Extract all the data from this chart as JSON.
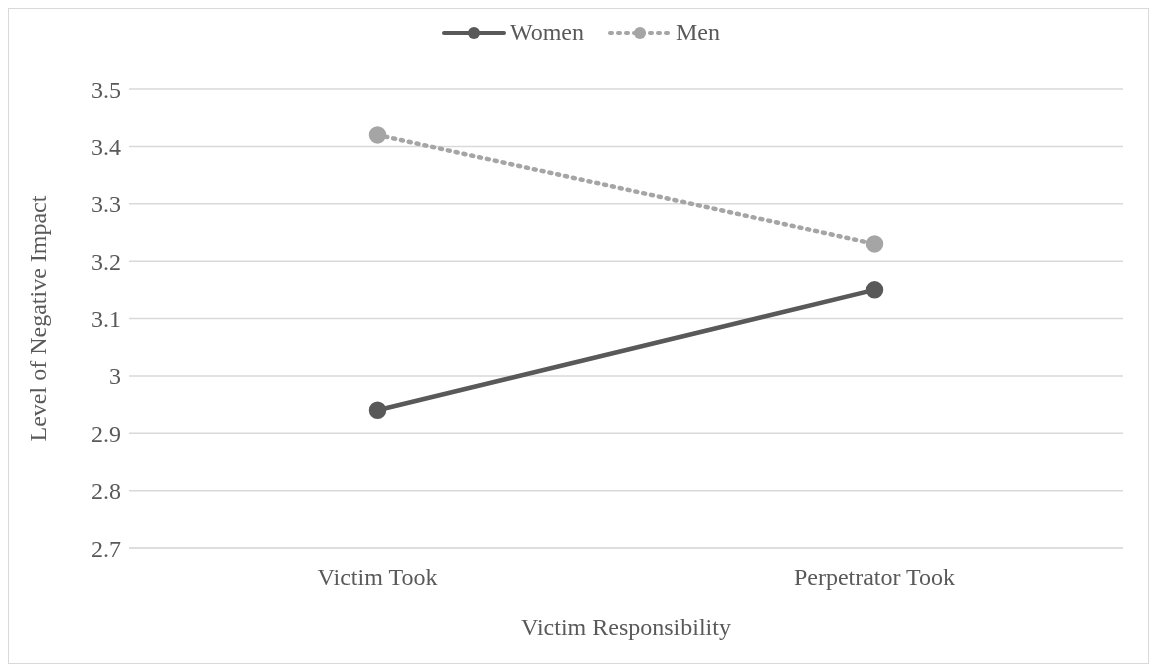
{
  "chart_data": {
    "type": "line",
    "xlabel": "Victim Responsibility",
    "ylabel": "Level of Negative Impact",
    "categories": [
      "Victim Took",
      "Perpetrator Took"
    ],
    "series": [
      {
        "name": "Women",
        "color": "#595959",
        "values": [
          2.94,
          3.15
        ],
        "line_style": "solid"
      },
      {
        "name": "Men",
        "color": "#a5a5a5",
        "values": [
          3.42,
          3.23
        ],
        "line_style": "dotted"
      }
    ],
    "ylim": [
      2.7,
      3.5
    ],
    "yticks": [
      2.7,
      2.8,
      2.9,
      3,
      3.1,
      3.2,
      3.3,
      3.4,
      3.5
    ],
    "grid": "y",
    "legend": "top",
    "marker": "circle"
  }
}
